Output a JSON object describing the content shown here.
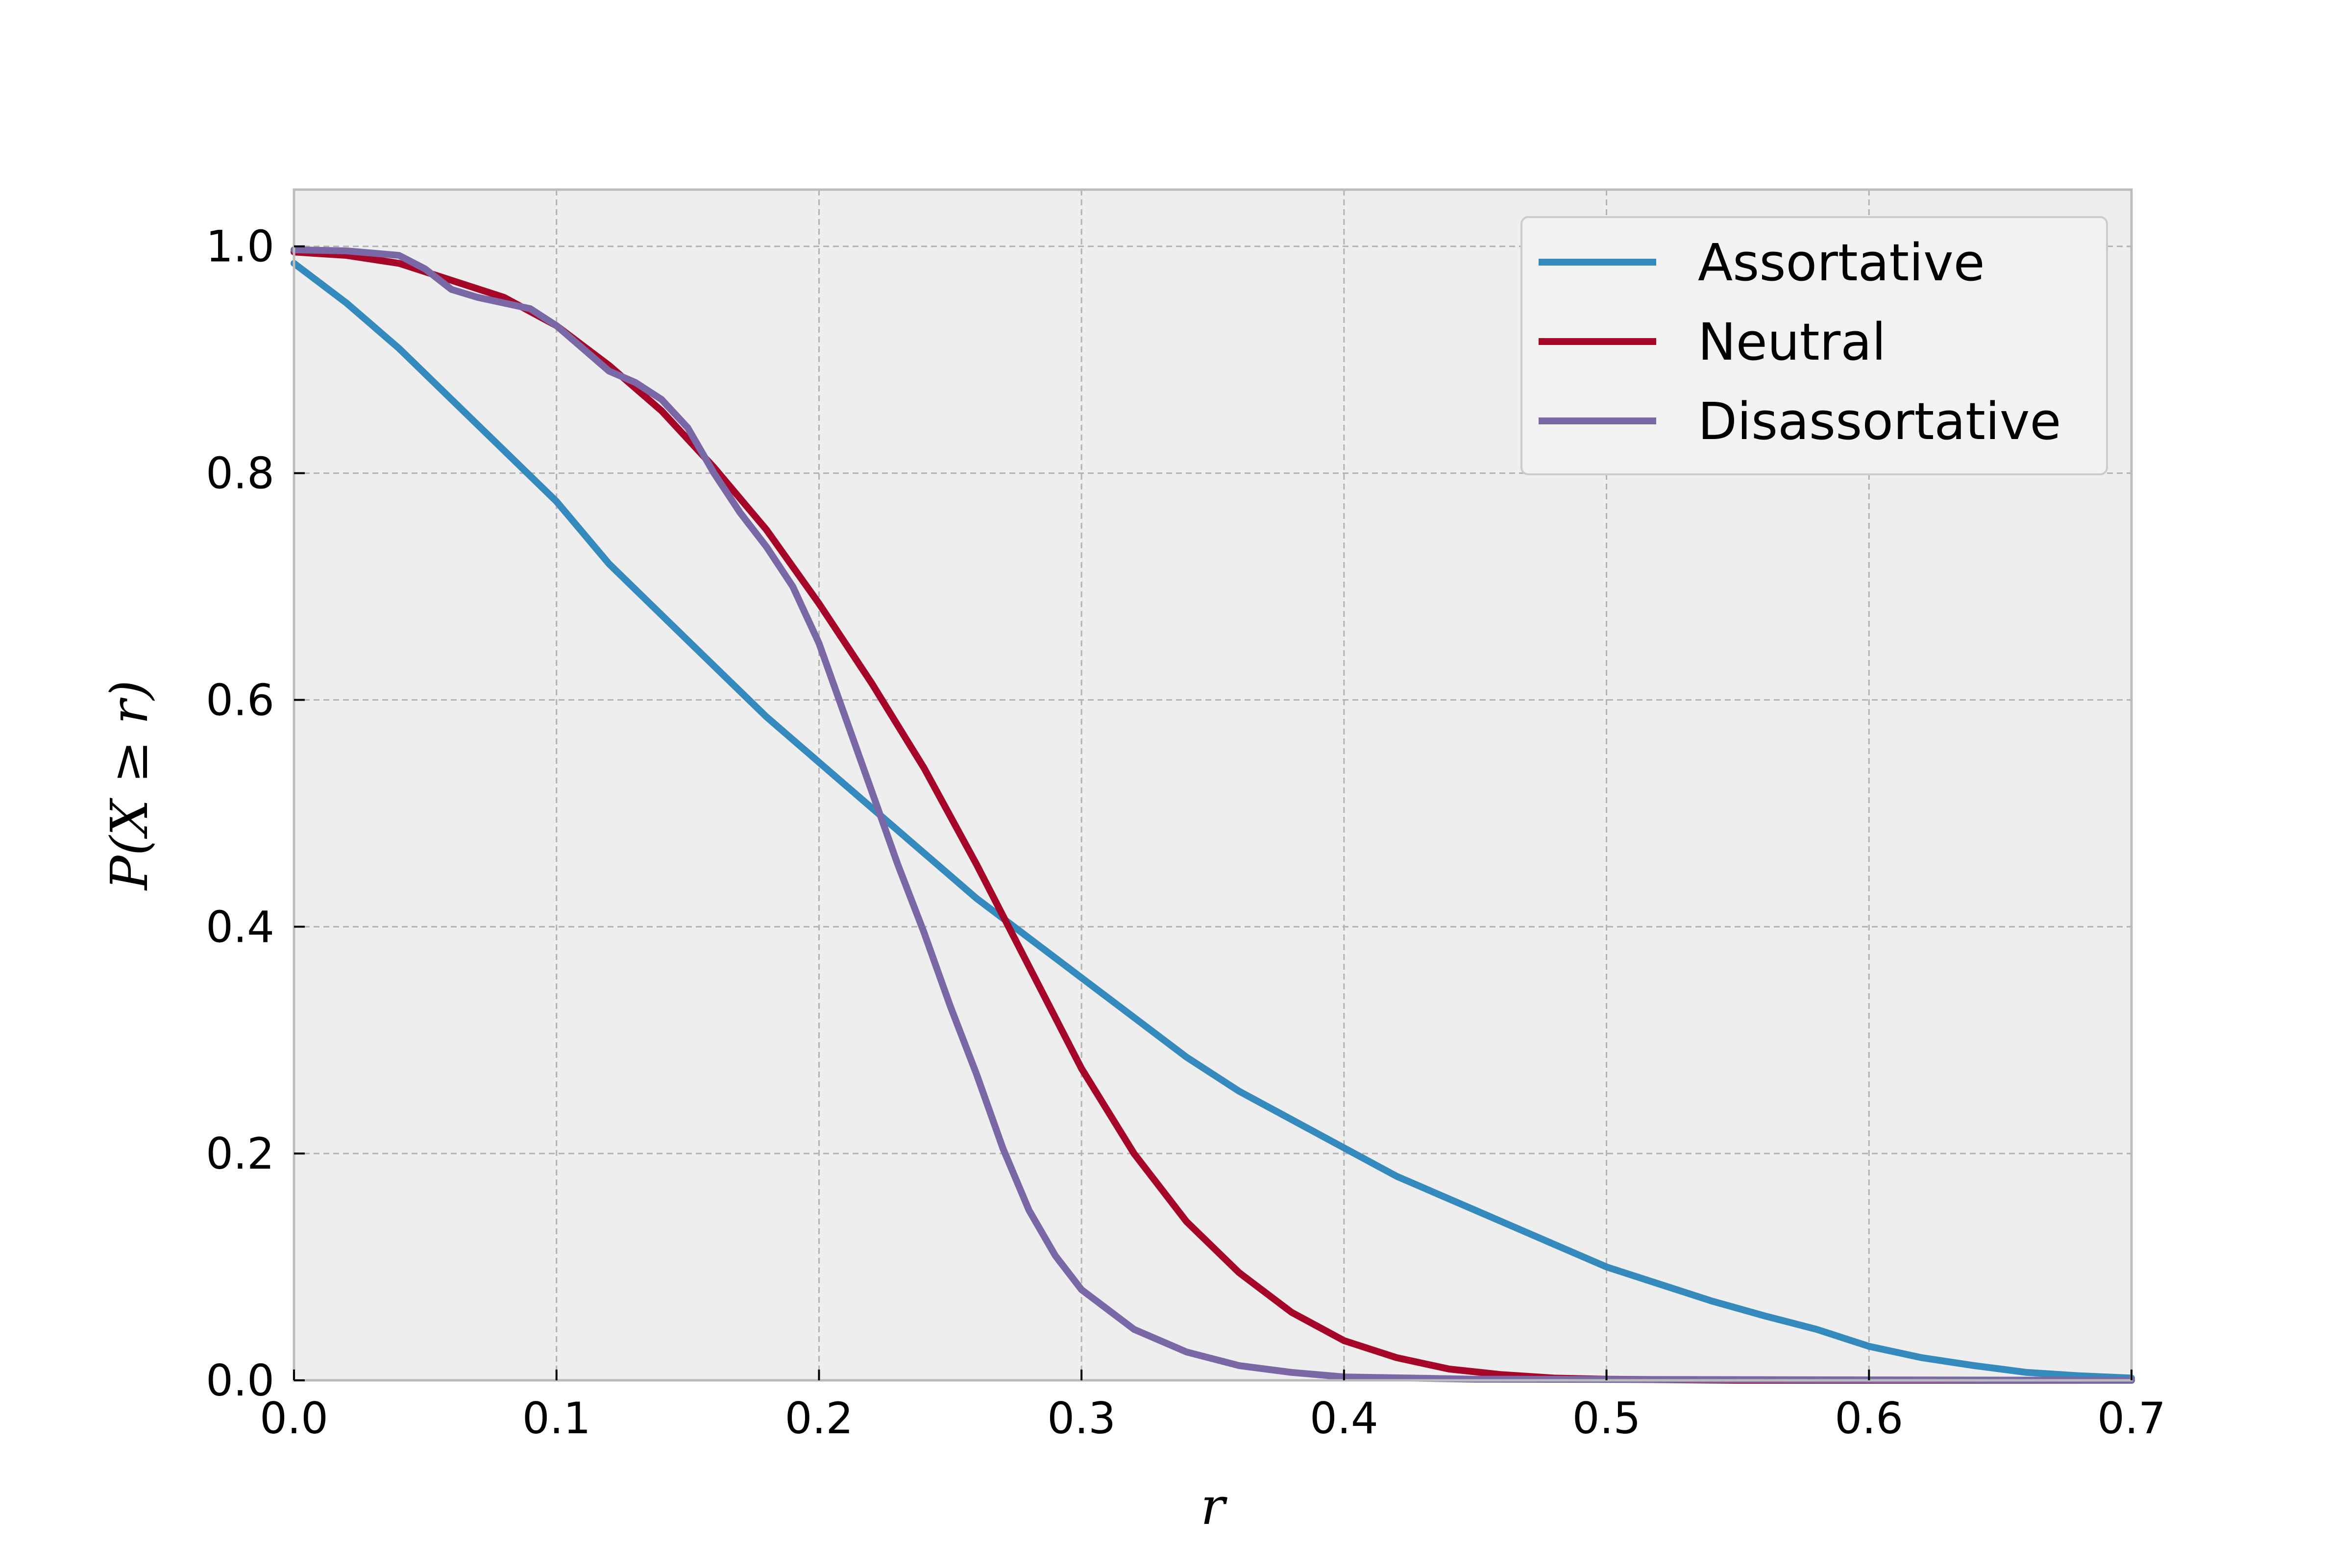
{
  "chart_data": {
    "type": "line",
    "title": "",
    "xlabel": "r",
    "ylabel": "P(X ≥ r)",
    "xlim": [
      0,
      0.7
    ],
    "ylim": [
      0,
      1.05
    ],
    "xticks": [
      "0.0",
      "0.1",
      "0.2",
      "0.3",
      "0.4",
      "0.5",
      "0.6",
      "0.7"
    ],
    "yticks": [
      "0.0",
      "0.2",
      "0.4",
      "0.6",
      "0.8",
      "1.0"
    ],
    "grid": true,
    "legend_position": "top-right",
    "colors": {
      "plot_background": "#eeeeee",
      "grid": "#b2b2b2",
      "frame": "#bcbcbc"
    },
    "series": [
      {
        "name": "Assortative",
        "color": "#348abd",
        "points": [
          [
            0.0,
            0.985
          ],
          [
            0.02,
            0.95
          ],
          [
            0.04,
            0.91
          ],
          [
            0.06,
            0.865
          ],
          [
            0.08,
            0.82
          ],
          [
            0.1,
            0.775
          ],
          [
            0.12,
            0.72
          ],
          [
            0.14,
            0.675
          ],
          [
            0.16,
            0.63
          ],
          [
            0.18,
            0.585
          ],
          [
            0.2,
            0.545
          ],
          [
            0.22,
            0.505
          ],
          [
            0.24,
            0.465
          ],
          [
            0.26,
            0.425
          ],
          [
            0.28,
            0.39
          ],
          [
            0.3,
            0.355
          ],
          [
            0.32,
            0.32
          ],
          [
            0.34,
            0.285
          ],
          [
            0.36,
            0.255
          ],
          [
            0.38,
            0.23
          ],
          [
            0.4,
            0.205
          ],
          [
            0.42,
            0.18
          ],
          [
            0.44,
            0.16
          ],
          [
            0.46,
            0.14
          ],
          [
            0.48,
            0.12
          ],
          [
            0.5,
            0.1
          ],
          [
            0.52,
            0.085
          ],
          [
            0.54,
            0.07
          ],
          [
            0.56,
            0.057
          ],
          [
            0.58,
            0.045
          ],
          [
            0.6,
            0.03
          ],
          [
            0.62,
            0.02
          ],
          [
            0.64,
            0.013
          ],
          [
            0.66,
            0.007
          ],
          [
            0.68,
            0.004
          ],
          [
            0.7,
            0.002
          ]
        ]
      },
      {
        "name": "Neutral",
        "color": "#a60628",
        "points": [
          [
            0.0,
            0.995
          ],
          [
            0.02,
            0.992
          ],
          [
            0.04,
            0.985
          ],
          [
            0.06,
            0.97
          ],
          [
            0.08,
            0.955
          ],
          [
            0.1,
            0.93
          ],
          [
            0.12,
            0.895
          ],
          [
            0.14,
            0.855
          ],
          [
            0.16,
            0.805
          ],
          [
            0.18,
            0.75
          ],
          [
            0.2,
            0.685
          ],
          [
            0.22,
            0.615
          ],
          [
            0.24,
            0.54
          ],
          [
            0.26,
            0.455
          ],
          [
            0.28,
            0.365
          ],
          [
            0.3,
            0.275
          ],
          [
            0.32,
            0.2
          ],
          [
            0.34,
            0.14
          ],
          [
            0.36,
            0.095
          ],
          [
            0.38,
            0.06
          ],
          [
            0.4,
            0.035
          ],
          [
            0.42,
            0.02
          ],
          [
            0.44,
            0.01
          ],
          [
            0.46,
            0.005
          ],
          [
            0.48,
            0.002
          ],
          [
            0.5,
            0.001
          ],
          [
            0.55,
            0.0
          ],
          [
            0.7,
            0.0
          ]
        ]
      },
      {
        "name": "Disassortative",
        "color": "#7a68a6",
        "points": [
          [
            0.0,
            0.997
          ],
          [
            0.02,
            0.996
          ],
          [
            0.04,
            0.992
          ],
          [
            0.05,
            0.98
          ],
          [
            0.06,
            0.962
          ],
          [
            0.07,
            0.955
          ],
          [
            0.09,
            0.945
          ],
          [
            0.1,
            0.93
          ],
          [
            0.11,
            0.91
          ],
          [
            0.12,
            0.89
          ],
          [
            0.13,
            0.88
          ],
          [
            0.14,
            0.865
          ],
          [
            0.15,
            0.84
          ],
          [
            0.16,
            0.8
          ],
          [
            0.17,
            0.765
          ],
          [
            0.18,
            0.735
          ],
          [
            0.19,
            0.7
          ],
          [
            0.2,
            0.65
          ],
          [
            0.21,
            0.585
          ],
          [
            0.22,
            0.52
          ],
          [
            0.23,
            0.455
          ],
          [
            0.24,
            0.395
          ],
          [
            0.25,
            0.33
          ],
          [
            0.26,
            0.27
          ],
          [
            0.27,
            0.205
          ],
          [
            0.28,
            0.15
          ],
          [
            0.29,
            0.11
          ],
          [
            0.3,
            0.08
          ],
          [
            0.32,
            0.045
          ],
          [
            0.34,
            0.025
          ],
          [
            0.36,
            0.013
          ],
          [
            0.38,
            0.007
          ],
          [
            0.4,
            0.003
          ],
          [
            0.45,
            0.001
          ],
          [
            0.7,
            0.0
          ]
        ]
      }
    ]
  }
}
